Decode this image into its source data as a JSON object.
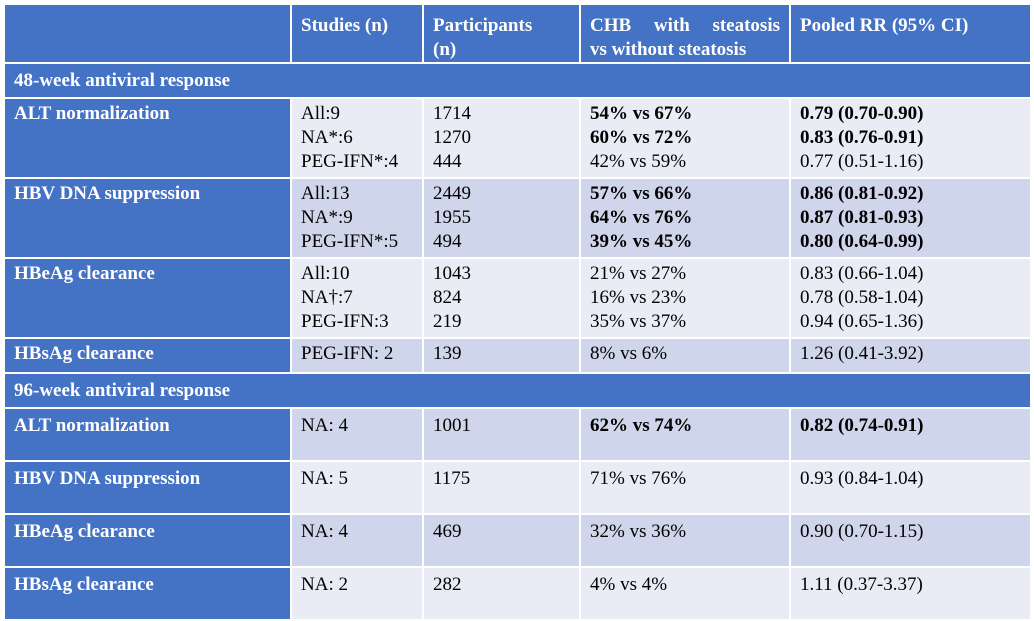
{
  "columns": {
    "blank": "",
    "studies": "Studies (n)",
    "participants_l1": "Participants",
    "participants_l2": "(n)",
    "chb_l1": "CHB with steatosis",
    "chb_l2": "vs without steatosis",
    "rr": "Pooled RR (95% CI)"
  },
  "sections": [
    {
      "title": "48-week antiviral response",
      "rows": [
        {
          "label": "ALT normalization",
          "studies": [
            "All:9",
            "NA*:6",
            "PEG-IFN*:4"
          ],
          "participants": [
            "1714",
            "1270",
            "444"
          ],
          "comparison": [
            "54% vs 67%",
            "60% vs 72%",
            "42% vs 59%"
          ],
          "rr": [
            "0.79 (0.70-0.90)",
            "0.83 (0.76-0.91)",
            "0.77 (0.51-1.16)"
          ]
        },
        {
          "label": "HBV DNA suppression",
          "studies": [
            "All:13",
            "NA*:9",
            "PEG-IFN*:5"
          ],
          "participants": [
            "2449",
            "1955",
            "494"
          ],
          "comparison": [
            "57% vs 66%",
            "64% vs 76%",
            "39% vs 45%"
          ],
          "rr": [
            "0.86 (0.81-0.92)",
            "0.87 (0.81-0.93)",
            "0.80 (0.64-0.99)"
          ]
        },
        {
          "label": "HBeAg clearance",
          "studies": [
            "All:10",
            "NA†:7",
            "PEG-IFN:3"
          ],
          "participants": [
            "1043",
            "824",
            "219"
          ],
          "comparison": [
            "21% vs 27%",
            "16% vs 23%",
            "35% vs 37%"
          ],
          "rr": [
            "0.83 (0.66-1.04)",
            "0.78 (0.58-1.04)",
            "0.94 (0.65-1.36)"
          ]
        },
        {
          "label": "HBsAg clearance",
          "studies": [
            "PEG-IFN: 2"
          ],
          "participants": [
            "139"
          ],
          "comparison": [
            "8% vs 6%"
          ],
          "rr": [
            "1.26 (0.41-3.92)"
          ]
        }
      ]
    },
    {
      "title": "96-week antiviral response",
      "rows": [
        {
          "label": "ALT normalization",
          "studies": [
            "NA: 4"
          ],
          "participants": [
            "1001"
          ],
          "comparison": [
            "62% vs 74%"
          ],
          "rr": [
            "0.82 (0.74-0.91)"
          ]
        },
        {
          "label": "HBV DNA suppression",
          "studies": [
            "NA: 5"
          ],
          "participants": [
            "1175"
          ],
          "comparison": [
            "71% vs 76%"
          ],
          "rr": [
            "0.93 (0.84-1.04)"
          ]
        },
        {
          "label": "HBeAg clearance",
          "studies": [
            "NA: 4"
          ],
          "participants": [
            "469"
          ],
          "comparison": [
            "32% vs 36%"
          ],
          "rr": [
            "0.90 (0.70-1.15)"
          ]
        },
        {
          "label": "HBsAg clearance",
          "studies": [
            "NA: 2"
          ],
          "participants": [
            "282"
          ],
          "comparison": [
            "4% vs 4%"
          ],
          "rr": [
            "1.11 (0.37-3.37)"
          ]
        }
      ]
    }
  ]
}
